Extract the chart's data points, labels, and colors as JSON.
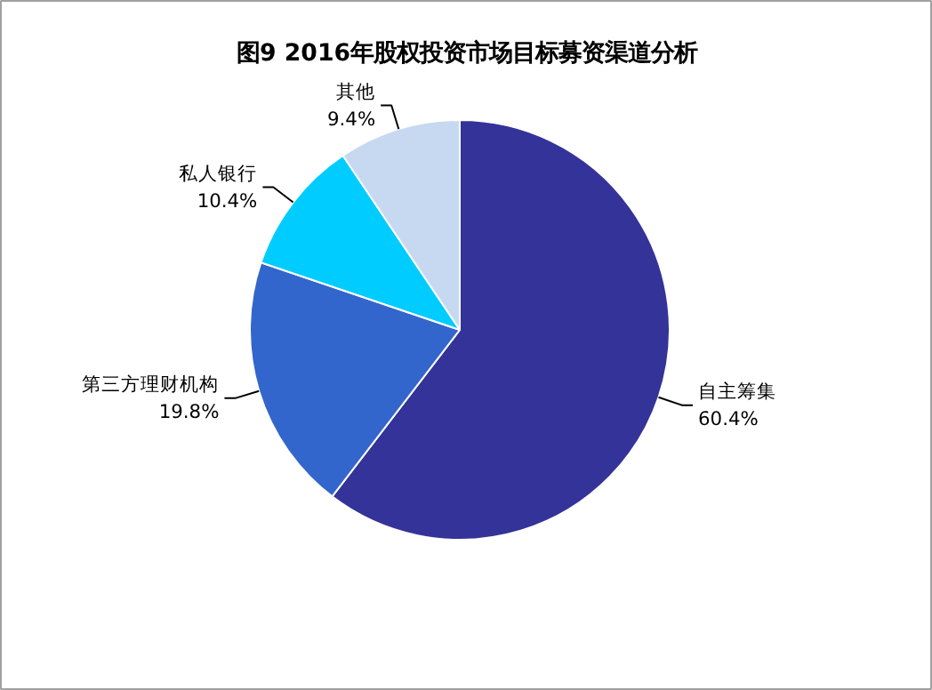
{
  "chart_data": {
    "type": "pie",
    "title": "图9 2016年股权投资市场目标募资渠道分析",
    "categories": [
      "自主筹集",
      "第三方理财机构",
      "私人银行",
      "其他"
    ],
    "values": [
      60.4,
      19.8,
      10.4,
      9.4
    ],
    "value_labels": [
      "60.4%",
      "19.8%",
      "10.4%",
      "9.4%"
    ],
    "colors": [
      "#333399",
      "#3366cc",
      "#00ccff",
      "#c6d9f0"
    ]
  }
}
